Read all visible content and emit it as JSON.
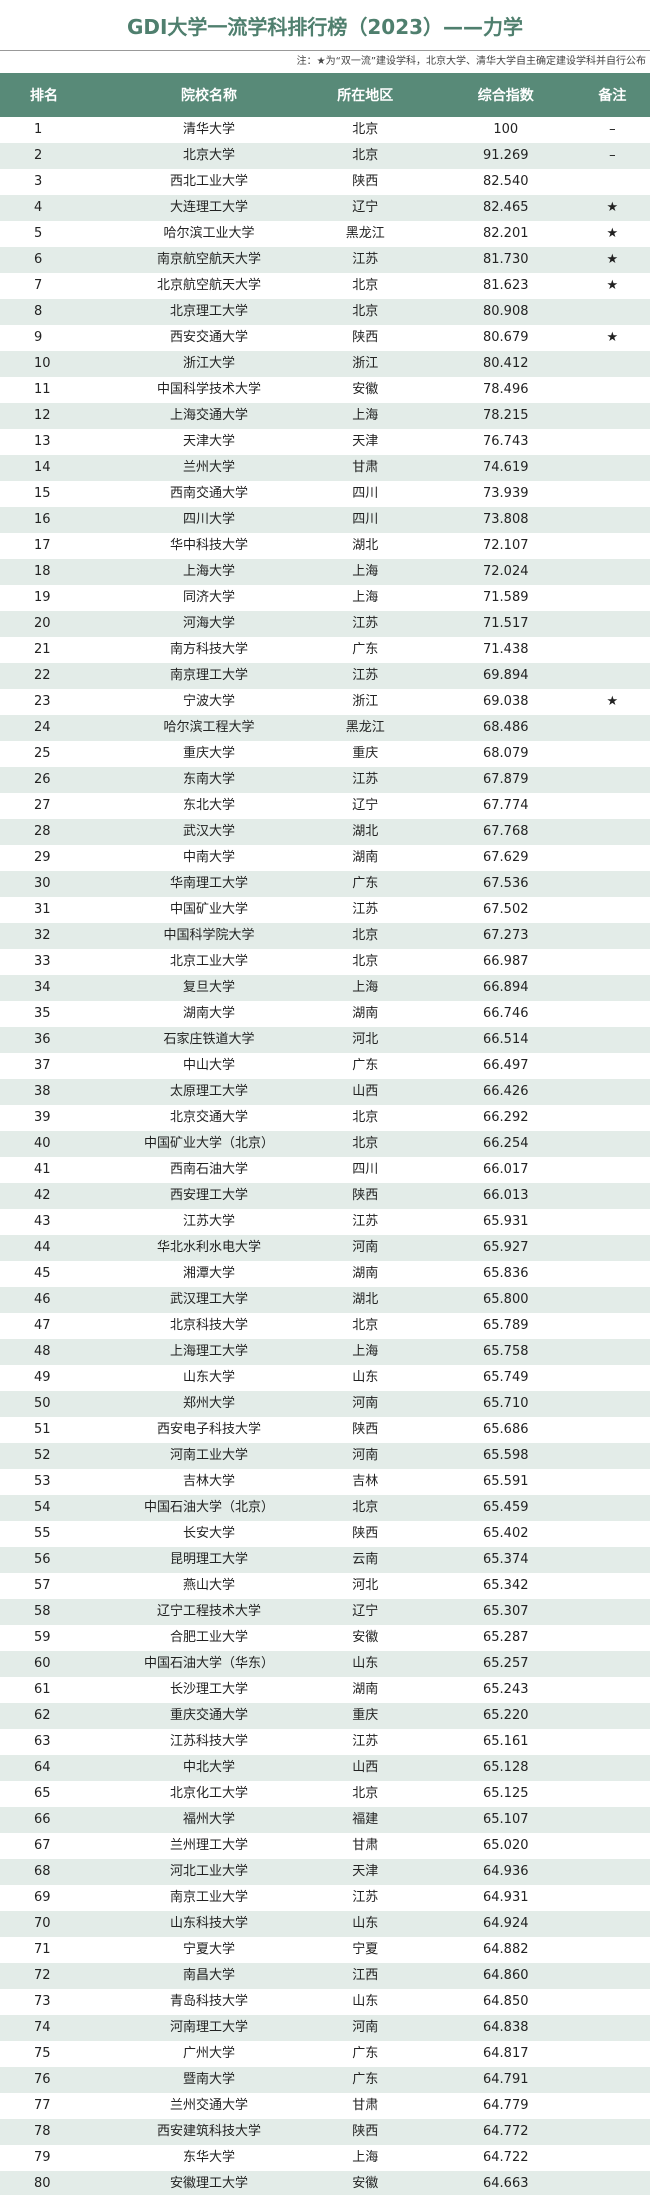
{
  "title": "GDI大学一流学科排行榜（2023）——力学",
  "note": "注：★为“双一流”建设学科，北京大学、清华大学自主确定建设学科并自行公布",
  "columns": [
    "排名",
    "院校名称",
    "所在地区",
    "综合指数",
    "备注"
  ],
  "colors": {
    "header": "#588a78",
    "stripe": "#e3ece8",
    "title": "#4f7f6e"
  },
  "rows": [
    [
      "1",
      "清华大学",
      "北京",
      "100",
      "–"
    ],
    [
      "2",
      "北京大学",
      "北京",
      "91.269",
      "–"
    ],
    [
      "3",
      "西北工业大学",
      "陕西",
      "82.540",
      ""
    ],
    [
      "4",
      "大连理工大学",
      "辽宁",
      "82.465",
      "★"
    ],
    [
      "5",
      "哈尔滨工业大学",
      "黑龙江",
      "82.201",
      "★"
    ],
    [
      "6",
      "南京航空航天大学",
      "江苏",
      "81.730",
      "★"
    ],
    [
      "7",
      "北京航空航天大学",
      "北京",
      "81.623",
      "★"
    ],
    [
      "8",
      "北京理工大学",
      "北京",
      "80.908",
      ""
    ],
    [
      "9",
      "西安交通大学",
      "陕西",
      "80.679",
      "★"
    ],
    [
      "10",
      "浙江大学",
      "浙江",
      "80.412",
      ""
    ],
    [
      "11",
      "中国科学技术大学",
      "安徽",
      "78.496",
      ""
    ],
    [
      "12",
      "上海交通大学",
      "上海",
      "78.215",
      ""
    ],
    [
      "13",
      "天津大学",
      "天津",
      "76.743",
      ""
    ],
    [
      "14",
      "兰州大学",
      "甘肃",
      "74.619",
      ""
    ],
    [
      "15",
      "西南交通大学",
      "四川",
      "73.939",
      ""
    ],
    [
      "16",
      "四川大学",
      "四川",
      "73.808",
      ""
    ],
    [
      "17",
      "华中科技大学",
      "湖北",
      "72.107",
      ""
    ],
    [
      "18",
      "上海大学",
      "上海",
      "72.024",
      ""
    ],
    [
      "19",
      "同济大学",
      "上海",
      "71.589",
      ""
    ],
    [
      "20",
      "河海大学",
      "江苏",
      "71.517",
      ""
    ],
    [
      "21",
      "南方科技大学",
      "广东",
      "71.438",
      ""
    ],
    [
      "22",
      "南京理工大学",
      "江苏",
      "69.894",
      ""
    ],
    [
      "23",
      "宁波大学",
      "浙江",
      "69.038",
      "★"
    ],
    [
      "24",
      "哈尔滨工程大学",
      "黑龙江",
      "68.486",
      ""
    ],
    [
      "25",
      "重庆大学",
      "重庆",
      "68.079",
      ""
    ],
    [
      "26",
      "东南大学",
      "江苏",
      "67.879",
      ""
    ],
    [
      "27",
      "东北大学",
      "辽宁",
      "67.774",
      ""
    ],
    [
      "28",
      "武汉大学",
      "湖北",
      "67.768",
      ""
    ],
    [
      "29",
      "中南大学",
      "湖南",
      "67.629",
      ""
    ],
    [
      "30",
      "华南理工大学",
      "广东",
      "67.536",
      ""
    ],
    [
      "31",
      "中国矿业大学",
      "江苏",
      "67.502",
      ""
    ],
    [
      "32",
      "中国科学院大学",
      "北京",
      "67.273",
      ""
    ],
    [
      "33",
      "北京工业大学",
      "北京",
      "66.987",
      ""
    ],
    [
      "34",
      "复旦大学",
      "上海",
      "66.894",
      ""
    ],
    [
      "35",
      "湖南大学",
      "湖南",
      "66.746",
      ""
    ],
    [
      "36",
      "石家庄铁道大学",
      "河北",
      "66.514",
      ""
    ],
    [
      "37",
      "中山大学",
      "广东",
      "66.497",
      ""
    ],
    [
      "38",
      "太原理工大学",
      "山西",
      "66.426",
      ""
    ],
    [
      "39",
      "北京交通大学",
      "北京",
      "66.292",
      ""
    ],
    [
      "40",
      "中国矿业大学（北京）",
      "北京",
      "66.254",
      ""
    ],
    [
      "41",
      "西南石油大学",
      "四川",
      "66.017",
      ""
    ],
    [
      "42",
      "西安理工大学",
      "陕西",
      "66.013",
      ""
    ],
    [
      "43",
      "江苏大学",
      "江苏",
      "65.931",
      ""
    ],
    [
      "44",
      "华北水利水电大学",
      "河南",
      "65.927",
      ""
    ],
    [
      "45",
      "湘潭大学",
      "湖南",
      "65.836",
      ""
    ],
    [
      "46",
      "武汉理工大学",
      "湖北",
      "65.800",
      ""
    ],
    [
      "47",
      "北京科技大学",
      "北京",
      "65.789",
      ""
    ],
    [
      "48",
      "上海理工大学",
      "上海",
      "65.758",
      ""
    ],
    [
      "49",
      "山东大学",
      "山东",
      "65.749",
      ""
    ],
    [
      "50",
      "郑州大学",
      "河南",
      "65.710",
      ""
    ],
    [
      "51",
      "西安电子科技大学",
      "陕西",
      "65.686",
      ""
    ],
    [
      "52",
      "河南工业大学",
      "河南",
      "65.598",
      ""
    ],
    [
      "53",
      "吉林大学",
      "吉林",
      "65.591",
      ""
    ],
    [
      "54",
      "中国石油大学（北京）",
      "北京",
      "65.459",
      ""
    ],
    [
      "55",
      "长安大学",
      "陕西",
      "65.402",
      ""
    ],
    [
      "56",
      "昆明理工大学",
      "云南",
      "65.374",
      ""
    ],
    [
      "57",
      "燕山大学",
      "河北",
      "65.342",
      ""
    ],
    [
      "58",
      "辽宁工程技术大学",
      "辽宁",
      "65.307",
      ""
    ],
    [
      "59",
      "合肥工业大学",
      "安徽",
      "65.287",
      ""
    ],
    [
      "60",
      "中国石油大学（华东）",
      "山东",
      "65.257",
      ""
    ],
    [
      "61",
      "长沙理工大学",
      "湖南",
      "65.243",
      ""
    ],
    [
      "62",
      "重庆交通大学",
      "重庆",
      "65.220",
      ""
    ],
    [
      "63",
      "江苏科技大学",
      "江苏",
      "65.161",
      ""
    ],
    [
      "64",
      "中北大学",
      "山西",
      "65.128",
      ""
    ],
    [
      "65",
      "北京化工大学",
      "北京",
      "65.125",
      ""
    ],
    [
      "66",
      "福州大学",
      "福建",
      "65.107",
      ""
    ],
    [
      "67",
      "兰州理工大学",
      "甘肃",
      "65.020",
      ""
    ],
    [
      "68",
      "河北工业大学",
      "天津",
      "64.936",
      ""
    ],
    [
      "69",
      "南京工业大学",
      "江苏",
      "64.931",
      ""
    ],
    [
      "70",
      "山东科技大学",
      "山东",
      "64.924",
      ""
    ],
    [
      "71",
      "宁夏大学",
      "宁夏",
      "64.882",
      ""
    ],
    [
      "72",
      "南昌大学",
      "江西",
      "64.860",
      ""
    ],
    [
      "73",
      "青岛科技大学",
      "山东",
      "64.850",
      ""
    ],
    [
      "74",
      "河南理工大学",
      "河南",
      "64.838",
      ""
    ],
    [
      "75",
      "广州大学",
      "广东",
      "64.817",
      ""
    ],
    [
      "76",
      "暨南大学",
      "广东",
      "64.791",
      ""
    ],
    [
      "77",
      "兰州交通大学",
      "甘肃",
      "64.779",
      ""
    ],
    [
      "78",
      "西安建筑科技大学",
      "陕西",
      "64.772",
      ""
    ],
    [
      "79",
      "东华大学",
      "上海",
      "64.722",
      ""
    ],
    [
      "80",
      "安徽理工大学",
      "安徽",
      "64.663",
      ""
    ]
  ]
}
